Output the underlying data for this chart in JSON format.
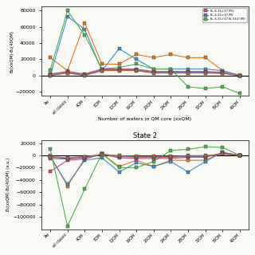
{
  "x_labels": [
    "9w",
    "all classic",
    "4QM",
    "8QM",
    "12QM",
    "16QM",
    "20QM",
    "24QM",
    "28QM",
    "32QM",
    "36QM",
    "40QM"
  ],
  "legend_entries": [
    "B₁ 6-31+G*/FQ",
    "B₁ 6-31+G*/PE",
    "B₁ 6-31+G*/6-31G*/PE"
  ],
  "state2_title": "State 2",
  "ylabel1": "B₂(xxQM)-B₂(40QM)",
  "ylabel2": "B₂(xxQM)-B₂(40QM) (a.u.)",
  "xlabel": "Number of waters in QM core (xxQM)",
  "state1": {
    "orange": [
      22000,
      6000,
      65000,
      14000,
      14000,
      26000,
      22000,
      26000,
      22000,
      22000,
      6000,
      0
    ],
    "blue": [
      0,
      73000,
      57000,
      6000,
      33000,
      20000,
      8000,
      8000,
      8000,
      8000,
      6000,
      0
    ],
    "green": [
      7000,
      80000,
      50000,
      8000,
      10000,
      14000,
      8000,
      8000,
      -14000,
      -16000,
      -14000,
      -22000
    ],
    "pink": [
      2000,
      5000,
      2000,
      8000,
      8000,
      8000,
      5000,
      5000,
      5000,
      5000,
      4000,
      0
    ],
    "purple": [
      1000,
      4000,
      1000,
      7000,
      7000,
      7000,
      4000,
      4000,
      4000,
      4000,
      3500,
      0
    ],
    "gray": [
      500,
      3500,
      500,
      6500,
      6500,
      6500,
      3500,
      3500,
      3500,
      3500,
      3000,
      0
    ],
    "brown": [
      0,
      3000,
      0,
      6000,
      6000,
      6000,
      3000,
      3000,
      3000,
      3000,
      2500,
      0
    ]
  },
  "state2": {
    "orange": [
      0,
      -50000,
      -5000,
      2000,
      -18000,
      -8000,
      -18000,
      -8000,
      -8000,
      -8000,
      5000,
      0
    ],
    "blue": [
      -3000,
      -47000,
      -8000,
      -4000,
      -27000,
      -12000,
      -18000,
      -10000,
      -27000,
      -10000,
      5000,
      0
    ],
    "green": [
      10000,
      -115000,
      -55000,
      3000,
      -20000,
      -20000,
      -10000,
      8000,
      10000,
      14000,
      13000,
      0
    ],
    "pink": [
      -26000,
      -8000,
      -6000,
      2000,
      -4000,
      -5000,
      -5000,
      -5000,
      -3000,
      -3000,
      4000,
      0
    ],
    "purple": [
      -5000,
      -6000,
      -4000,
      2000,
      -2000,
      -3000,
      -3000,
      -3000,
      -2000,
      -2000,
      3000,
      0
    ],
    "gray": [
      -3000,
      -5000,
      -3000,
      2000,
      -1000,
      -2000,
      -2000,
      -2000,
      -1000,
      -1000,
      2500,
      0
    ],
    "brown_neg": [
      -2000,
      -4000,
      -2000,
      1000,
      -500,
      -1500,
      -1500,
      -1500,
      -500,
      -500,
      2000,
      0
    ]
  },
  "colors": {
    "orange": "#E07820",
    "blue": "#4090C0",
    "green": "#50B050",
    "pink": "#C05080",
    "purple": "#9060A0",
    "gray": "#7070A0",
    "brown": "#A06840",
    "brown_neg": "#A06840"
  },
  "ylim1": [
    -25000,
    85000
  ],
  "ylim2": [
    -120000,
    25000
  ],
  "yticks1": [
    -20000,
    0,
    20000,
    40000,
    60000,
    80000
  ],
  "yticks2": [
    -100000,
    -80000,
    -60000,
    -40000,
    -20000,
    0,
    20000
  ],
  "legend_colors": [
    "#C05080",
    "#7070A0",
    "#50B050"
  ],
  "bg_color": "#f8f8f5"
}
